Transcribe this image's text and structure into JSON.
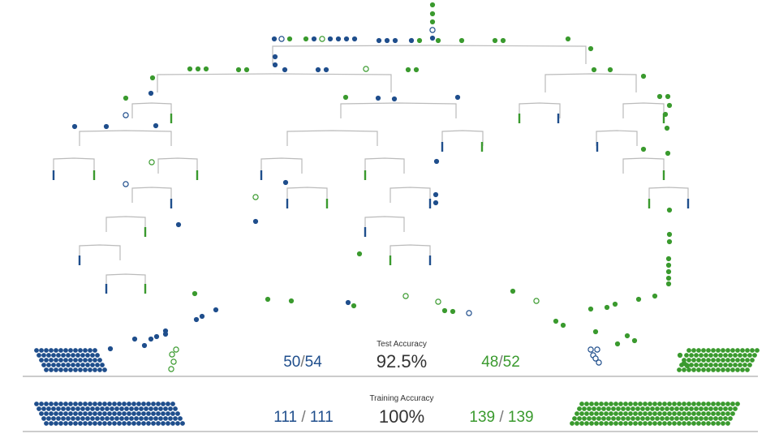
{
  "colors": {
    "class_a": "#1f4e8c",
    "class_b": "#3a9a2e",
    "branch": "#bbbbbb",
    "baseline": "#999999"
  },
  "test": {
    "label": "Test Accuracy",
    "accuracy": "92.5%",
    "class_a_correct": "50",
    "class_a_total": "54",
    "class_b_correct": "48",
    "class_b_total": "52",
    "separator": "/"
  },
  "training": {
    "label": "Training Accuracy",
    "accuracy": "100%",
    "class_a_correct": "111",
    "class_a_total": "111",
    "class_b_correct": "139",
    "class_b_total": "139",
    "separator": "/"
  }
}
